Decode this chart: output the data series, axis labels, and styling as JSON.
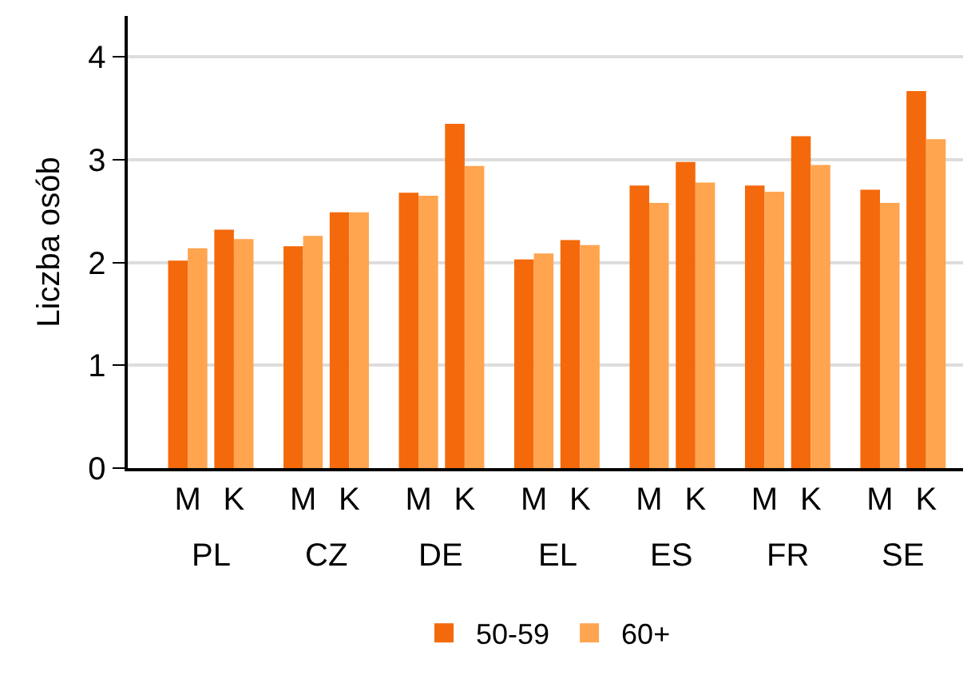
{
  "chart_data": {
    "type": "bar",
    "ylabel": "Liczba osób",
    "categories": [
      "M",
      "K",
      "M",
      "K",
      "M",
      "K",
      "M",
      "K",
      "M",
      "K",
      "M",
      "K",
      "M",
      "K"
    ],
    "annotations": [
      "PL",
      "CZ",
      "DE",
      "EL",
      "ES",
      "FR",
      "SE"
    ],
    "series": [
      {
        "name": "50-59",
        "color": "#f4690b",
        "values": [
          2.02,
          2.32,
          2.16,
          2.49,
          2.68,
          3.35,
          2.03,
          2.22,
          2.75,
          2.98,
          2.75,
          3.23,
          2.71,
          3.67
        ]
      },
      {
        "name": "60+",
        "color": "#ffa550",
        "values": [
          2.14,
          2.23,
          2.26,
          2.49,
          2.65,
          2.94,
          2.09,
          2.17,
          2.58,
          2.78,
          2.69,
          2.95,
          2.58,
          3.2
        ]
      }
    ],
    "ylim": [
      0,
      4.4
    ],
    "yticks": [
      0,
      1,
      2,
      3,
      4
    ],
    "grid": "y",
    "legend": "bottom"
  }
}
